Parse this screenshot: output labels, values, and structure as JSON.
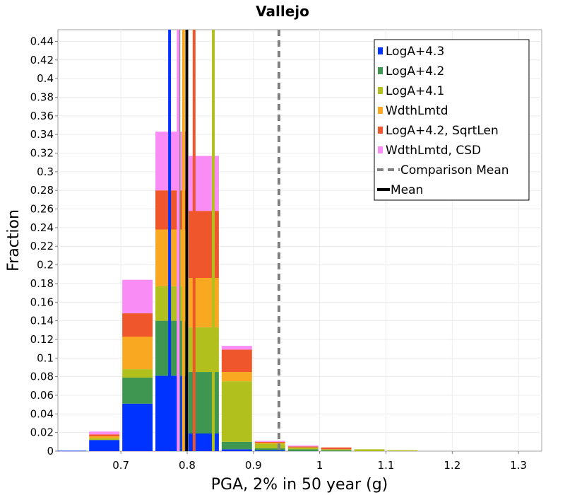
{
  "chart_data": {
    "type": "bar",
    "stacked": true,
    "title": "Vallejo",
    "xlabel": "PGA, 2% in 50 year (g)",
    "ylabel": "Fraction",
    "xlim": [
      0.605,
      1.335
    ],
    "ylim": [
      0,
      0.4525
    ],
    "bin_width": 0.05,
    "x_ticks": [
      0.7,
      0.8,
      0.9,
      1,
      1.1,
      1.2,
      1.3
    ],
    "x_tick_labels": [
      "0.7",
      "0.8",
      "0.9",
      "1",
      "1.1",
      "1.2",
      "1.3"
    ],
    "y_ticks": [
      0,
      0.02,
      0.04,
      0.06,
      0.08,
      0.1,
      0.12,
      0.14,
      0.16,
      0.18,
      0.2,
      0.22,
      0.24,
      0.26,
      0.28,
      0.3,
      0.32,
      0.34,
      0.36,
      0.38,
      0.4,
      0.42,
      0.44
    ],
    "y_tick_labels": [
      "0",
      "0.02",
      "0.04",
      "0.06",
      "0.08",
      "0.1",
      "0.12",
      "0.14",
      "0.16",
      "0.18",
      "0.2",
      "0.22",
      "0.24",
      "0.26",
      "0.28",
      "0.3",
      "0.32",
      "0.34",
      "0.36",
      "0.38",
      "0.4",
      "0.42",
      "0.44"
    ],
    "bins": [
      0.625,
      0.675,
      0.725,
      0.775,
      0.825,
      0.875,
      0.925,
      0.975,
      1.025,
      1.075,
      1.125
    ],
    "series": [
      {
        "name": "LogA+4.3",
        "color": "#0033ff",
        "values": [
          0.0005,
          0.012,
          0.051,
          0.081,
          0.019,
          0.002,
          0.001,
          0,
          0,
          0,
          0
        ],
        "mean": 0.7735
      },
      {
        "name": "LogA+4.2",
        "color": "#3f9650",
        "values": [
          0,
          0,
          0.028,
          0.059,
          0.066,
          0.008,
          0.002,
          0.002,
          0.001,
          0,
          0
        ],
        "mean": 0.7875
      },
      {
        "name": "LogA+4.1",
        "color": "#b2c01e",
        "values": [
          0,
          0.002,
          0.009,
          0.037,
          0.048,
          0.065,
          0.005,
          0.002,
          0.001,
          0.002,
          0.001
        ],
        "mean": 0.8395
      },
      {
        "name": "WdthLmtd",
        "color": "#f8a821",
        "values": [
          0,
          0.002,
          0.035,
          0.061,
          0.053,
          0.01,
          0.001,
          0,
          0,
          0,
          0
        ],
        "mean": 0.7945
      },
      {
        "name": "LogA+4.2, SqrtLen",
        "color": "#f0562b",
        "values": [
          0,
          0.002,
          0.025,
          0.042,
          0.072,
          0.024,
          0.001,
          0.001,
          0.002,
          0,
          0
        ],
        "mean": 0.8105
      },
      {
        "name": "WdthLmtd, CSD",
        "color": "#fa8cf6",
        "values": [
          0,
          0.003,
          0.036,
          0.063,
          0.059,
          0.004,
          0.001,
          0.001,
          0,
          0,
          0
        ],
        "mean": 0.7865
      }
    ],
    "comparison_mean": {
      "name": "Comparison Mean",
      "x": 0.9385,
      "color": "#808080"
    },
    "overall_mean": {
      "name": "Mean",
      "x": 0.7995,
      "color": "#000000"
    },
    "legend_position": "top-right",
    "grid": true
  }
}
